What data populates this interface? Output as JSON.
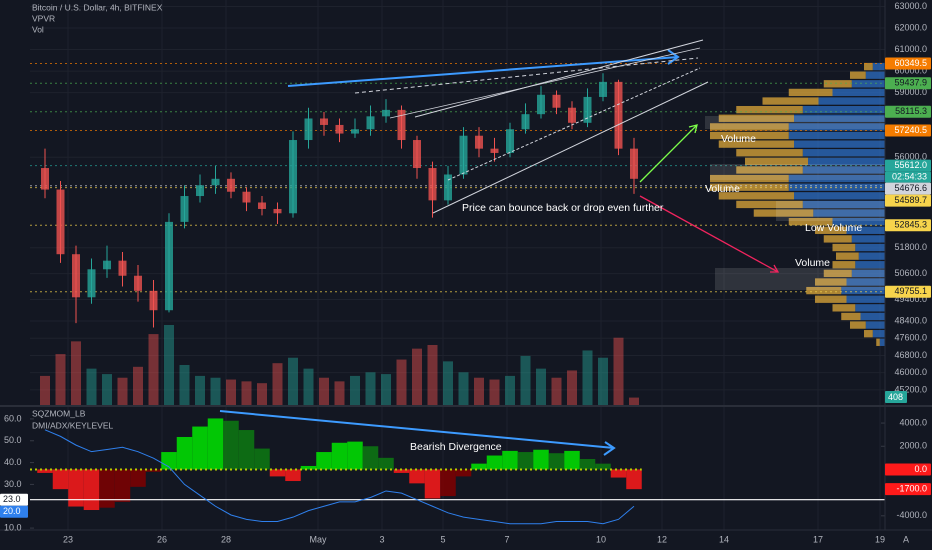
{
  "chart_data": {
    "type": "candlestick",
    "title": "Bitcoin / U.S. Dollar, 4h, BITFINEX",
    "overlays": [
      "VPVR",
      "Vol"
    ],
    "x_labels": [
      "23",
      "26",
      "28",
      "May",
      "3",
      "5",
      "7",
      "10",
      "12",
      "14",
      "17",
      "19"
    ],
    "ylim": [
      44500,
      63300
    ],
    "yticks": [
      {
        "value": 63000,
        "label": "63000.0"
      },
      {
        "value": 62000,
        "label": "62000.0"
      },
      {
        "value": 61000,
        "label": "61000.0"
      },
      {
        "value": 60000,
        "label": "60000.0"
      },
      {
        "value": 59000,
        "label": "59000.0"
      },
      {
        "value": 56000,
        "label": "56000.0"
      },
      {
        "value": 51800,
        "label": "51800.0"
      },
      {
        "value": 50600,
        "label": "50600.0"
      },
      {
        "value": 49400,
        "label": "49400.0"
      },
      {
        "value": 48400,
        "label": "48400.0"
      },
      {
        "value": 47600,
        "label": "47600.0"
      },
      {
        "value": 46800,
        "label": "46800.0"
      },
      {
        "value": 46000,
        "label": "46000.0"
      },
      {
        "value": 45200,
        "label": "45200.0"
      }
    ],
    "series": {
      "open": [
        55500,
        54500,
        51500,
        49500,
        50800,
        51200,
        50500,
        49800,
        48900,
        53000,
        54200,
        54700,
        55000,
        54400,
        53900,
        53600,
        53400,
        56800,
        57800,
        57500,
        57100,
        57300,
        57900,
        58200,
        56800,
        55500,
        54000,
        55200,
        57000,
        56400,
        56200,
        57300,
        58000,
        58900,
        58300,
        57600,
        58800,
        59500,
        56400
      ],
      "high": [
        56400,
        54900,
        51900,
        51300,
        51900,
        51600,
        51000,
        50300,
        53400,
        54700,
        55200,
        55600,
        55300,
        54600,
        54200,
        53900,
        57200,
        58300,
        58100,
        57800,
        57800,
        58400,
        58700,
        58400,
        57000,
        55800,
        55600,
        57400,
        57400,
        56900,
        57600,
        58500,
        59300,
        59100,
        58600,
        59200,
        59900,
        59600,
        56900
      ],
      "low": [
        54100,
        51100,
        48300,
        49200,
        50400,
        50000,
        49300,
        48100,
        48800,
        52700,
        53900,
        54300,
        54100,
        53500,
        53300,
        52900,
        53200,
        56400,
        57000,
        56700,
        56900,
        57000,
        57600,
        56400,
        55000,
        53200,
        53800,
        55000,
        56000,
        55800,
        56000,
        57100,
        57800,
        58000,
        57300,
        57400,
        58600,
        56100,
        54300
      ],
      "close": [
        54500,
        51500,
        49500,
        50800,
        51200,
        50500,
        49800,
        48900,
        53000,
        54200,
        54700,
        55000,
        54400,
        53900,
        53600,
        53400,
        56800,
        57800,
        57500,
        57100,
        57300,
        57900,
        58200,
        56800,
        55500,
        54000,
        55200,
        57000,
        56400,
        56200,
        57300,
        58000,
        58900,
        58300,
        57600,
        58800,
        59500,
        56400,
        55000
      ]
    },
    "up_color": "#26a69a",
    "down_color": "#ef5350",
    "volume": {
      "values": [
        1600,
        2800,
        3500,
        2000,
        1700,
        1500,
        2100,
        3900,
        4400,
        2200,
        1600,
        1500,
        1400,
        1300,
        1200,
        2300,
        2600,
        2000,
        1500,
        1300,
        1600,
        1800,
        1700,
        2500,
        3100,
        3300,
        2400,
        1800,
        1500,
        1400,
        1600,
        2700,
        2000,
        1500,
        1900,
        3000,
        2600,
        3700,
        408
      ],
      "label_color": "#26a69a"
    },
    "volume_profile": {
      "prices": [
        60200,
        59800,
        59400,
        59000,
        58600,
        58200,
        57800,
        57400,
        57000,
        56600,
        56200,
        55800,
        55400,
        55000,
        54600,
        54200,
        53800,
        53400,
        53000,
        52600,
        52200,
        51800,
        51400,
        51000,
        50600,
        50200,
        49800,
        49400,
        49000,
        48600,
        48200,
        47800,
        47400
      ],
      "up": [
        7,
        11,
        19,
        30,
        38,
        47,
        52,
        55,
        55,
        52,
        47,
        44,
        47,
        55,
        55,
        52,
        47,
        41,
        30,
        22,
        19,
        17,
        15,
        17,
        19,
        22,
        25,
        22,
        17,
        14,
        11,
        7,
        3
      ],
      "down": [
        5,
        9,
        16,
        25,
        32,
        38,
        43,
        45,
        45,
        43,
        38,
        36,
        38,
        45,
        45,
        43,
        38,
        34,
        25,
        18,
        16,
        13,
        13,
        13,
        16,
        18,
        20,
        18,
        13,
        11,
        9,
        5,
        2
      ],
      "colors": [
        "#2d6fc4",
        "#e0a93a"
      ]
    },
    "price_labels": [
      {
        "value": 60349.5,
        "color": "#f57c00",
        "text_color": "#ffffff"
      },
      {
        "value": 59437.9,
        "color": "#4caf50",
        "text_color": "#131722"
      },
      {
        "value": 58115.3,
        "color": "#4caf50",
        "text_color": "#131722"
      },
      {
        "value": 57240.5,
        "color": "#f57c00",
        "text_color": "#ffffff"
      },
      {
        "value": 55612.0,
        "label": "55612.0",
        "color": "#26a69a",
        "text_color": "#ffffff"
      },
      {
        "value": 54676.6,
        "color": "#d1d4dc",
        "text_color": "#131722"
      },
      {
        "value": 54589.7,
        "color": "#f7d44c",
        "text_color": "#131722"
      },
      {
        "value": 52845.3,
        "color": "#f7d44c",
        "text_color": "#131722"
      },
      {
        "value": 49755.1,
        "color": "#f7d44c",
        "text_color": "#131722"
      }
    ],
    "countdown": "02:54:33",
    "annotations": [
      "Volume",
      "Volume",
      "Price can bounce back or drop even further",
      "Low Volume",
      "Volume"
    ],
    "indicator": {
      "titles": [
        "SQZMOM_LB",
        "DMI/ADX/KEYLEVEL"
      ],
      "ylim": [
        5,
        65
      ],
      "yticks": [
        {
          "value": 60,
          "label": "60.0"
        },
        {
          "value": 50,
          "label": "50.0"
        },
        {
          "value": 40,
          "label": "40.0"
        },
        {
          "value": 30,
          "label": "30.0"
        },
        {
          "value": 10,
          "label": "10.0"
        }
      ],
      "y2lim": [
        -6000,
        5300
      ],
      "y2ticks": [
        {
          "value": 4000,
          "label": "4000.0"
        },
        {
          "value": 2000,
          "label": "2000.0"
        },
        {
          "value": -4000,
          "label": "-4000.0"
        }
      ],
      "momentum": {
        "values": [
          -300,
          -1700,
          -3200,
          -3500,
          -3300,
          -2800,
          -1500,
          -200,
          1500,
          2800,
          3700,
          4400,
          4200,
          3400,
          1800,
          -600,
          -1000,
          300,
          1500,
          2300,
          2400,
          2000,
          1000,
          -300,
          -1200,
          -2500,
          -2300,
          -600,
          500,
          1200,
          1600,
          1500,
          1700,
          1400,
          1600,
          900,
          500,
          -700,
          -1700
        ],
        "value_labels": [
          null,
          null,
          null,
          null,
          null,
          null,
          null,
          null,
          null,
          null,
          null,
          null,
          null,
          null,
          null,
          null,
          null,
          null,
          null,
          null,
          null,
          null,
          null,
          null,
          null,
          null,
          null,
          null,
          null,
          null,
          null,
          null,
          null,
          null,
          null,
          null,
          null,
          null,
          "-1700.0"
        ],
        "colors": {
          "rising_positive": "#00e600",
          "falling_positive": "#0d7a12",
          "falling_negative": "#ff1a1a",
          "rising_negative": "#800000"
        }
      },
      "adx": {
        "values": [
          55,
          52,
          48,
          45,
          46,
          47,
          45,
          42,
          38,
          30,
          25,
          20,
          16,
          14,
          13,
          13,
          15,
          18,
          20,
          22,
          22,
          24,
          27,
          26,
          23,
          20,
          17,
          15,
          14,
          13,
          12,
          12,
          12,
          13,
          13,
          13,
          12,
          14,
          20
        ],
        "value_labels": [
          null,
          null,
          null,
          null,
          null,
          null,
          null,
          null,
          null,
          null,
          null,
          null,
          null,
          null,
          null,
          null,
          null,
          null,
          null,
          null,
          null,
          null,
          null,
          null,
          null,
          null,
          null,
          null,
          null,
          null,
          null,
          null,
          null,
          null,
          null,
          null,
          null,
          null,
          "20.0"
        ],
        "color": "#2f80ed"
      },
      "key_level": {
        "value": 23,
        "label": "23.0",
        "color": "#ffffff"
      },
      "zero_line": {
        "value": 0,
        "label": "0.0",
        "color": "#ff1a1a"
      },
      "annotation": "Bearish Divergence"
    },
    "axis_corner": "A"
  }
}
